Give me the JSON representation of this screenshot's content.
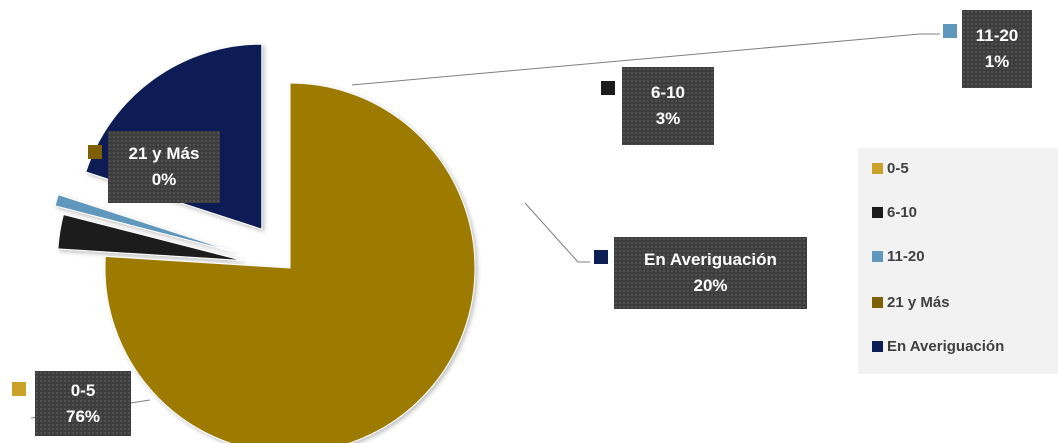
{
  "chart_data": {
    "type": "pie",
    "exploded": true,
    "legend_position": "right",
    "slices": [
      {
        "label": "0-5",
        "value": 76,
        "display": "76%",
        "color": "#9d7a00"
      },
      {
        "label": "6-10",
        "value": 3,
        "display": "3%",
        "color": "#1b1b1b"
      },
      {
        "label": "11-20",
        "value": 1,
        "display": "1%",
        "color": "#5f97bd"
      },
      {
        "label": "21 y Más",
        "value": 0,
        "display": "0%",
        "color": "#7f6000"
      },
      {
        "label": "En Averiguación",
        "value": 20,
        "display": "20%",
        "color": "#0c1f55"
      }
    ]
  },
  "labels": {
    "s0": {
      "name": "0-5",
      "pct": "76%"
    },
    "s1": {
      "name": "6-10",
      "pct": "3%"
    },
    "s2": {
      "name": "11-20",
      "pct": "1%"
    },
    "s3": {
      "name": "21 y Más",
      "pct": "0%"
    },
    "s4": {
      "name": "En Averiguación",
      "pct": "20%"
    }
  },
  "legend": {
    "items": [
      {
        "label": "0-5",
        "color": "#c9a227"
      },
      {
        "label": "6-10",
        "color": "#1b1b1b"
      },
      {
        "label": "11-20",
        "color": "#5f97bd"
      },
      {
        "label": "21 y Más",
        "color": "#7f6000"
      },
      {
        "label": "En Averiguación",
        "color": "#0c1f55"
      }
    ]
  }
}
